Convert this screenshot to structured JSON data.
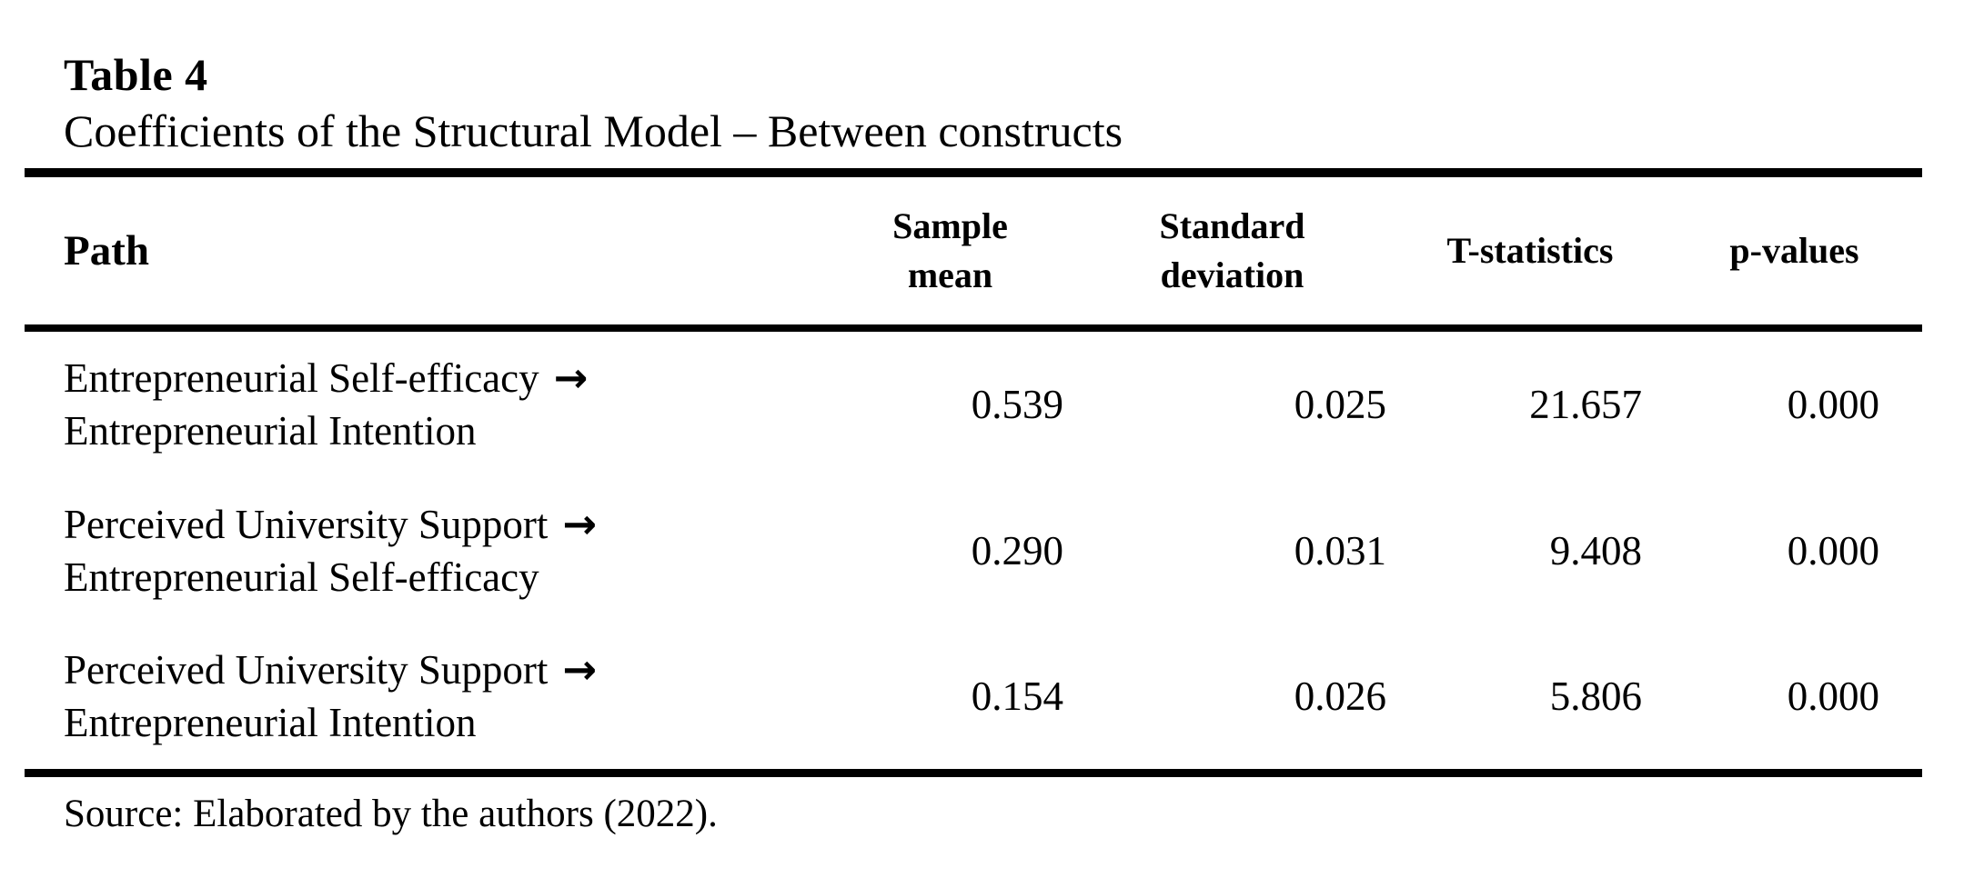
{
  "table": {
    "label": "Table 4",
    "title": "Coefficients of the Structural Model – Between constructs",
    "columns": [
      {
        "id": "path",
        "label": "Path"
      },
      {
        "id": "sample_mean",
        "label": "Sample mean"
      },
      {
        "id": "standard_deviation",
        "label": "Standard deviation"
      },
      {
        "id": "t_statistics",
        "label": "T-statistics"
      },
      {
        "id": "p_values",
        "label": "p-values"
      }
    ],
    "rows": [
      {
        "path_from": "Entrepreneurial Self-efficacy",
        "arrow": "→",
        "path_to": "Entrepreneurial Intention",
        "sample_mean": "0.539",
        "standard_deviation": "0.025",
        "t_statistics": "21.657",
        "p_values": "0.000"
      },
      {
        "path_from": "Perceived University Support",
        "arrow": "→",
        "path_to": "Entrepreneurial Self-efficacy",
        "sample_mean": "0.290",
        "standard_deviation": "0.031",
        "t_statistics": "9.408",
        "p_values": "0.000"
      },
      {
        "path_from": "Perceived University Support",
        "arrow": "→",
        "path_to": "Entrepreneurial Intention",
        "sample_mean": "0.154",
        "standard_deviation": "0.026",
        "t_statistics": "5.806",
        "p_values": "0.000"
      }
    ],
    "source_note": "Source: Elaborated by the authors (2022).",
    "colors": {
      "background": "#ffffff",
      "text": "#000000",
      "rule": "#000000"
    }
  }
}
